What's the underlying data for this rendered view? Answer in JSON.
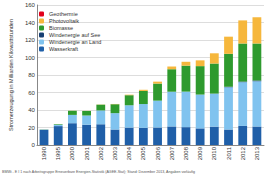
{
  "chart_data": {
    "type": "bar",
    "stacked": true,
    "grid": true,
    "legend": "top-left",
    "y_label": "Stromerzeugung in Milliarden Kilowattstunden",
    "annotations": [
      "BMWi - E I 1 nach Arbeitsgruppe Erneuerbare Energien-Statistik (AGEE-Stat); Stand: Dezember 2013, Angaben vorläufig"
    ],
    "categories": [
      "1990",
      "1995",
      "2000",
      "2001",
      "2002",
      "2003",
      "2004",
      "2005",
      "2006",
      "2007",
      "2008",
      "2009",
      "2010",
      "2011",
      "2012",
      "2013"
    ],
    "ylim": [
      0,
      160
    ],
    "yticks": [
      0,
      20,
      40,
      60,
      80,
      100,
      120,
      140,
      160
    ],
    "series": [
      {
        "name": "Wasserkraft",
        "color": "#1f5fa8",
        "values": [
          17.4,
          21.6,
          24.9,
          23.2,
          23.7,
          17.7,
          19.9,
          19.6,
          20.0,
          21.2,
          20.4,
          19.0,
          21.0,
          17.7,
          21.8,
          21.2
        ]
      },
      {
        "name": "Windenergie an Land",
        "color": "#80c3ef",
        "values": [
          0.1,
          1.5,
          9.5,
          10.5,
          15.8,
          18.7,
          25.5,
          27.2,
          30.7,
          39.7,
          40.6,
          38.6,
          37.6,
          48.3,
          50.0,
          51.7
        ]
      },
      {
        "name": "Windenergie auf See",
        "color": "#163f73",
        "values": [
          0,
          0,
          0,
          0,
          0,
          0,
          0,
          0,
          0,
          0,
          0,
          0.04,
          0.2,
          0.6,
          0.7,
          0.9
        ]
      },
      {
        "name": "Biomasse",
        "color": "#2e9a2e",
        "values": [
          0.2,
          0.7,
          4.7,
          5.2,
          6.6,
          10.2,
          11.5,
          15.0,
          19.5,
          25.7,
          29.7,
          32.5,
          34.3,
          37.6,
          43.5,
          42.2
        ]
      },
      {
        "name": "Photovoltaik",
        "color": "#f6b73c",
        "values": [
          0,
          0,
          0.1,
          0.1,
          0.2,
          0.3,
          0.6,
          1.3,
          2.2,
          3.1,
          4.4,
          6.6,
          11.7,
          19.6,
          26.4,
          30.0
        ]
      },
      {
        "name": "Geothermie",
        "color": "#e2001a",
        "values": [
          0,
          0,
          0,
          0,
          0,
          0,
          0,
          0,
          0,
          0,
          0,
          0,
          0,
          0,
          0.03,
          0.08
        ]
      }
    ]
  }
}
